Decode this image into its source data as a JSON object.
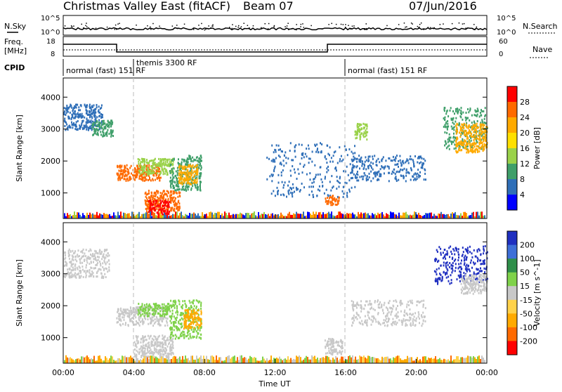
{
  "header": {
    "title": "Christmas Valley East (fitACF)",
    "beam": "Beam 07",
    "date": "07/Jun/2016"
  },
  "top_panels": {
    "nsky_label": "N.Sky",
    "nsearch_label": "N.Search",
    "nsky_ticks": [
      "10^5",
      "10^0"
    ],
    "nsearch_ticks": [
      "10^5",
      "10^0"
    ],
    "freq_label_1": "Freq.",
    "freq_label_2": "[MHz]",
    "freq_ticks": [
      "18",
      "8"
    ],
    "nave_label": "Nave",
    "nave_ticks": [
      "60",
      "0"
    ],
    "cpid_label": "CPID",
    "cpid_segments": [
      {
        "label": "normal (fast) 151 RF",
        "start_h": 0,
        "end_h": 4
      },
      {
        "label": "themis 3300 RF",
        "start_h": 4,
        "end_h": 16
      },
      {
        "label": "normal (fast) 151 RF",
        "start_h": 16,
        "end_h": 24
      }
    ]
  },
  "chart_data": [
    {
      "type": "heatmap",
      "title": "",
      "xlabel": "Time UT",
      "ylabel": "Slant Range [km]",
      "xlim_hours": [
        0,
        24
      ],
      "ylim_km": [
        200,
        4600
      ],
      "x_ticks": [
        "00:00",
        "04:00",
        "08:00",
        "12:00",
        "16:00",
        "20:00",
        "00:00"
      ],
      "y_ticks": [
        "1000",
        "2000",
        "3000",
        "4000"
      ],
      "colorbar_label": "Power [dB]",
      "colorbar_ticks": [
        "28",
        "24",
        "20",
        "16",
        "12",
        "8",
        "4"
      ],
      "colorbar_colors": [
        "#ff0000",
        "#ff6a00",
        "#ffaa00",
        "#ffe000",
        "#9ad24a",
        "#3f9f6a",
        "#2f6fb8",
        "#0000ff"
      ],
      "blobs": [
        {
          "t0": 0.0,
          "t1": 2.2,
          "r0": 3000,
          "r1": 3800,
          "color": "#2f6fb8"
        },
        {
          "t0": 1.6,
          "t1": 2.8,
          "r0": 2800,
          "r1": 3300,
          "color": "#3f9f6a"
        },
        {
          "t0": 3.0,
          "t1": 5.5,
          "r0": 1400,
          "r1": 1900,
          "color": "#ff6a00"
        },
        {
          "t0": 4.2,
          "t1": 6.2,
          "r0": 1600,
          "r1": 2100,
          "color": "#9ad24a"
        },
        {
          "t0": 4.6,
          "t1": 6.6,
          "r0": 450,
          "r1": 1100,
          "color": "#ff6a00"
        },
        {
          "t0": 4.8,
          "t1": 6.0,
          "r0": 350,
          "r1": 800,
          "color": "#ff0000"
        },
        {
          "t0": 6.0,
          "t1": 7.8,
          "r0": 1100,
          "r1": 2200,
          "color": "#3f9f6a"
        },
        {
          "t0": 6.5,
          "t1": 7.6,
          "r0": 1300,
          "r1": 1900,
          "color": "#ffaa00"
        },
        {
          "t0": 11.5,
          "t1": 16.5,
          "r0": 900,
          "r1": 2600,
          "color": "#2f6fb8"
        },
        {
          "t0": 14.8,
          "t1": 15.6,
          "r0": 650,
          "r1": 950,
          "color": "#ff6a00"
        },
        {
          "t0": 16.3,
          "t1": 20.5,
          "r0": 1400,
          "r1": 2200,
          "color": "#2f6fb8"
        },
        {
          "t0": 16.5,
          "t1": 17.2,
          "r0": 2700,
          "r1": 3200,
          "color": "#9ad24a"
        },
        {
          "t0": 21.5,
          "t1": 24.0,
          "r0": 2400,
          "r1": 3700,
          "color": "#3f9f6a"
        },
        {
          "t0": 22.2,
          "t1": 24.0,
          "r0": 2300,
          "r1": 3200,
          "color": "#ffaa00"
        }
      ],
      "ground_band": {
        "r0": 200,
        "r1": 420,
        "colors": [
          "#2f6fb8",
          "#ff6a00",
          "#ffaa00",
          "#9ad24a",
          "#ff0000",
          "#0000ff"
        ]
      }
    },
    {
      "type": "heatmap",
      "title": "",
      "xlabel": "Time UT",
      "ylabel": "Slant Range [km]",
      "xlim_hours": [
        0,
        24
      ],
      "ylim_km": [
        200,
        4600
      ],
      "x_ticks": [
        "00:00",
        "04:00",
        "08:00",
        "12:00",
        "16:00",
        "20:00",
        "00:00"
      ],
      "y_ticks": [
        "1000",
        "2000",
        "3000",
        "4000"
      ],
      "colorbar_label": "Velocity [m s^-1]",
      "colorbar_ticks": [
        "200",
        "100",
        "50",
        "15",
        "-15",
        "-50",
        "-100",
        "-200"
      ],
      "colorbar_colors": [
        "#1f2fc0",
        "#3e6fd8",
        "#2f8f4a",
        "#7fd24a",
        "#c8c8c8",
        "#ffd24a",
        "#ffaa00",
        "#ff6a00",
        "#ff0000"
      ],
      "blobs": [
        {
          "t0": 0.0,
          "t1": 2.6,
          "r0": 2900,
          "r1": 3800,
          "color": "#c8c8c8"
        },
        {
          "t0": 3.0,
          "t1": 6.0,
          "r0": 1400,
          "r1": 2000,
          "color": "#c8c8c8"
        },
        {
          "t0": 4.2,
          "t1": 6.0,
          "r0": 1700,
          "r1": 2100,
          "color": "#7fd24a"
        },
        {
          "t0": 4.0,
          "t1": 6.2,
          "r0": 400,
          "r1": 1100,
          "color": "#c8c8c8"
        },
        {
          "t0": 6.0,
          "t1": 7.8,
          "r0": 1000,
          "r1": 2200,
          "color": "#7fd24a"
        },
        {
          "t0": 6.8,
          "t1": 7.8,
          "r0": 1300,
          "r1": 1900,
          "color": "#ffaa00"
        },
        {
          "t0": 14.8,
          "t1": 15.8,
          "r0": 500,
          "r1": 1000,
          "color": "#c8c8c8"
        },
        {
          "t0": 16.3,
          "t1": 20.5,
          "r0": 1400,
          "r1": 2200,
          "color": "#c8c8c8"
        },
        {
          "t0": 21.0,
          "t1": 24.0,
          "r0": 2700,
          "r1": 3900,
          "color": "#1f2fc0"
        },
        {
          "t0": 22.5,
          "t1": 24.0,
          "r0": 2400,
          "r1": 3000,
          "color": "#c8c8c8"
        }
      ],
      "ground_band": {
        "r0": 200,
        "r1": 450,
        "colors": [
          "#ffd24a",
          "#ffaa00",
          "#c8c8c8",
          "#ff6a00",
          "#7fd24a"
        ]
      }
    }
  ]
}
